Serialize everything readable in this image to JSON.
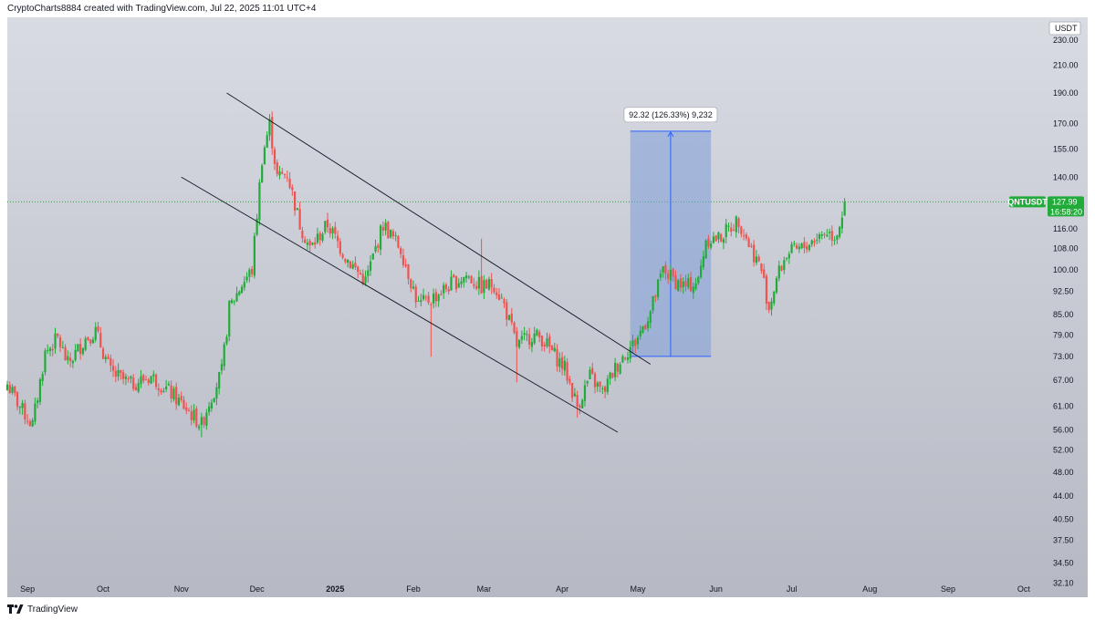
{
  "header": {
    "attribution": "CryptoCharts8884 created with TradingView.com, Jul 22, 2025 11:01 UTC+4"
  },
  "footer": {
    "brand": "TradingView",
    "logo_icon": "tradingview-logo-icon"
  },
  "colors": {
    "up": "#26a69a",
    "up_bright": "#22ab3a",
    "down": "#ef5350",
    "price_label_bg": "#22ab3a",
    "measure_fill": "#7e9fd8",
    "measure_line": "#2962ff",
    "bg_top": "#d9dbe3",
    "bg_bottom": "#b6b9c3",
    "trendline": "#131722"
  },
  "chart_data": {
    "type": "candlestick",
    "symbol": "QNTUSDT",
    "quote_currency": "USDT",
    "y_scale": "log",
    "ylim": [
      30.5,
      250
    ],
    "y_ticks": [
      "230.00",
      "210.00",
      "190.00",
      "170.00",
      "155.00",
      "140.00",
      "116.00",
      "108.00",
      "100.00",
      "92.50",
      "85.00",
      "79.00",
      "73.00",
      "67.00",
      "61.00",
      "56.00",
      "52.00",
      "48.00",
      "44.00",
      "40.50",
      "37.50",
      "34.50",
      "32.10"
    ],
    "x_labels": [
      "Sep",
      "Oct",
      "Nov",
      "Dec",
      "2025",
      "Feb",
      "Mar",
      "Apr",
      "May",
      "Jun",
      "Jul",
      "Aug",
      "Sep",
      "Oct"
    ],
    "x_range": [
      "2024-08-24",
      "2025-10-09"
    ],
    "last_price": "127.99",
    "countdown": "16:58:20",
    "close_anchors": [
      [
        "2024-08-24",
        66
      ],
      [
        "2024-08-30",
        60
      ],
      [
        "2024-09-03",
        57
      ],
      [
        "2024-09-08",
        74
      ],
      [
        "2024-09-13",
        78
      ],
      [
        "2024-09-17",
        71
      ],
      [
        "2024-09-24",
        78
      ],
      [
        "2024-09-28",
        80
      ],
      [
        "2024-10-04",
        69
      ],
      [
        "2024-10-12",
        66
      ],
      [
        "2024-10-20",
        68
      ],
      [
        "2024-10-26",
        65
      ],
      [
        "2024-11-02",
        61
      ],
      [
        "2024-11-09",
        57
      ],
      [
        "2024-11-12",
        62
      ],
      [
        "2024-11-17",
        69
      ],
      [
        "2024-11-20",
        87
      ],
      [
        "2024-11-25",
        95
      ],
      [
        "2024-11-29",
        100
      ],
      [
        "2024-12-03",
        150
      ],
      [
        "2024-12-06",
        170
      ],
      [
        "2024-12-09",
        140
      ],
      [
        "2024-12-13",
        142
      ],
      [
        "2024-12-18",
        118
      ],
      [
        "2024-12-22",
        108
      ],
      [
        "2024-12-29",
        118
      ],
      [
        "2025-01-05",
        105
      ],
      [
        "2025-01-13",
        96
      ],
      [
        "2025-01-20",
        118
      ],
      [
        "2025-01-27",
        108
      ],
      [
        "2025-02-03",
        88
      ],
      [
        "2025-02-08",
        90
      ],
      [
        "2025-02-16",
        95
      ],
      [
        "2025-02-22",
        98
      ],
      [
        "2025-02-28",
        94
      ],
      [
        "2025-03-05",
        95
      ],
      [
        "2025-03-09",
        88
      ],
      [
        "2025-03-14",
        76
      ],
      [
        "2025-03-20",
        79
      ],
      [
        "2025-03-24",
        78
      ],
      [
        "2025-04-02",
        70
      ],
      [
        "2025-04-07",
        61
      ],
      [
        "2025-04-12",
        68
      ],
      [
        "2025-04-17",
        64
      ],
      [
        "2025-04-22",
        70
      ],
      [
        "2025-04-26",
        74
      ],
      [
        "2025-04-30",
        77
      ],
      [
        "2025-05-06",
        86
      ],
      [
        "2025-05-11",
        100
      ],
      [
        "2025-05-16",
        96
      ],
      [
        "2025-05-20",
        94
      ],
      [
        "2025-05-25",
        96
      ],
      [
        "2025-05-28",
        112
      ],
      [
        "2025-06-02",
        112
      ],
      [
        "2025-06-06",
        116
      ],
      [
        "2025-06-10",
        120
      ],
      [
        "2025-06-14",
        110
      ],
      [
        "2025-06-19",
        100
      ],
      [
        "2025-06-22",
        87
      ],
      [
        "2025-06-25",
        97
      ],
      [
        "2025-06-29",
        106
      ],
      [
        "2025-07-05",
        108
      ],
      [
        "2025-07-10",
        112
      ],
      [
        "2025-07-15",
        115
      ],
      [
        "2025-07-18",
        113
      ],
      [
        "2025-07-20",
        118
      ],
      [
        "2025-07-22",
        127.99
      ]
    ],
    "trendlines": [
      {
        "name": "channel-upper",
        "from": [
          "2024-11-19",
          190
        ],
        "to": [
          "2025-05-06",
          71
        ]
      },
      {
        "name": "channel-lower",
        "from": [
          "2024-11-01",
          140
        ],
        "to": [
          "2025-04-23",
          55.5
        ]
      }
    ],
    "measure": {
      "label": "92.32 (126.33%) 9,232",
      "from_date": "2025-04-28",
      "to_date": "2025-05-30",
      "from_price": 73.08,
      "to_price": 165.4
    }
  }
}
